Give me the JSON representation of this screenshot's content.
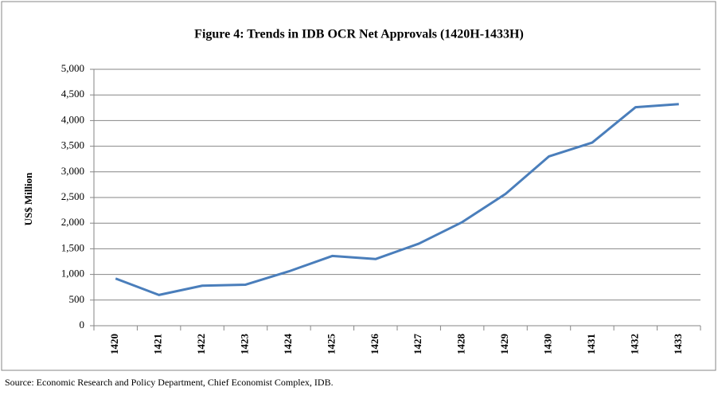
{
  "chart_data": {
    "type": "line",
    "title": "Figure 4: Trends in  IDB OCR Net Approvals (1420H-1433H)",
    "y_label": "US$ Million",
    "source": "Source: Economic Research and Policy Department, Chief Economist Complex, IDB.",
    "categories": [
      "1420",
      "1421",
      "1422",
      "1423",
      "1424",
      "1425",
      "1426",
      "1427",
      "1428",
      "1429",
      "1430",
      "1431",
      "1432",
      "1433"
    ],
    "series": [
      {
        "name": "Net Approvals",
        "color": "#4a7ebb",
        "values": [
          920,
          600,
          780,
          800,
          1060,
          1360,
          1300,
          1600,
          2020,
          2570,
          3300,
          3570,
          4260,
          4320
        ]
      }
    ],
    "ylim": [
      0,
      5000
    ],
    "yticks": [
      0,
      500,
      {
        "value": 1000,
        "label": "1,000"
      },
      {
        "value": 1500,
        "label": "1,500"
      },
      {
        "value": 2000,
        "label": "2,000"
      },
      {
        "value": 2500,
        "label": "2,500"
      },
      {
        "value": 3000,
        "label": "3,000"
      },
      {
        "value": 3500,
        "label": "3,500"
      },
      {
        "value": 4000,
        "label": "4,000"
      },
      {
        "value": 4500,
        "label": "4,500"
      },
      {
        "value": 5000,
        "label": "5,000"
      }
    ],
    "grid": true
  }
}
